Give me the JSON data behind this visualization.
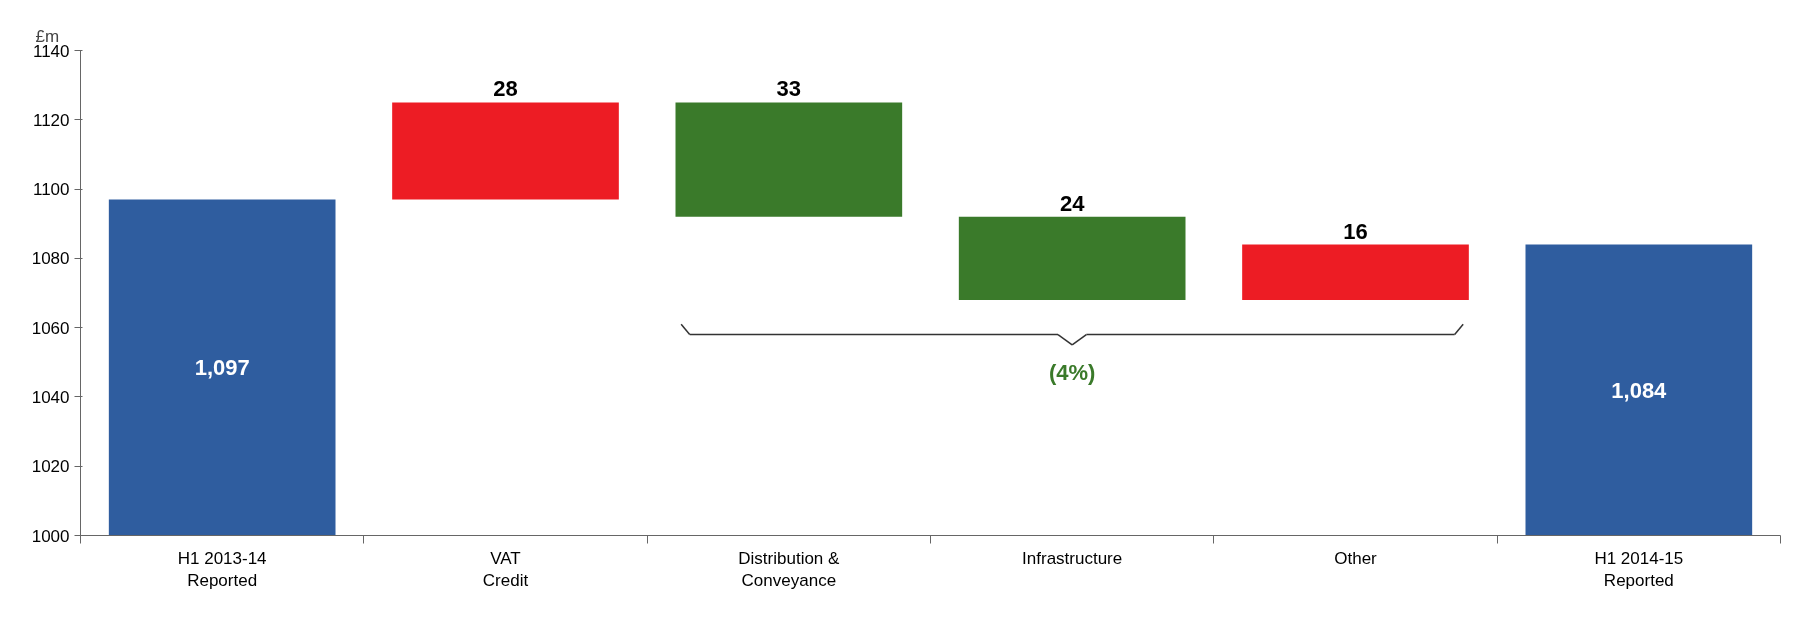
{
  "chart_data": {
    "type": "bar",
    "ylabel": "£m",
    "categories": [
      "H1 2013-14\nReported",
      "VAT\nCredit",
      "Distribution &\nConveyance",
      "Infrastructure",
      "Other",
      "H1 2014-15\nReported"
    ],
    "values": [
      1097,
      28,
      -33,
      -24,
      16,
      1084
    ],
    "base": [
      null,
      1097,
      1125,
      1092,
      1068,
      null
    ],
    "colors": [
      "#2f5d9f",
      "#ed1c24",
      "#3a7a2a",
      "#3a7a2a",
      "#ed1c24",
      "#2f5d9f"
    ],
    "value_labels": [
      "1,097",
      "28",
      "33",
      "24",
      "16",
      "1,084"
    ],
    "ylim": [
      1000,
      1140
    ],
    "yticks": [
      1000,
      1020,
      1040,
      1060,
      1080,
      1100,
      1120,
      1140
    ],
    "annotations": [
      "(4%)"
    ],
    "grid": false
  }
}
